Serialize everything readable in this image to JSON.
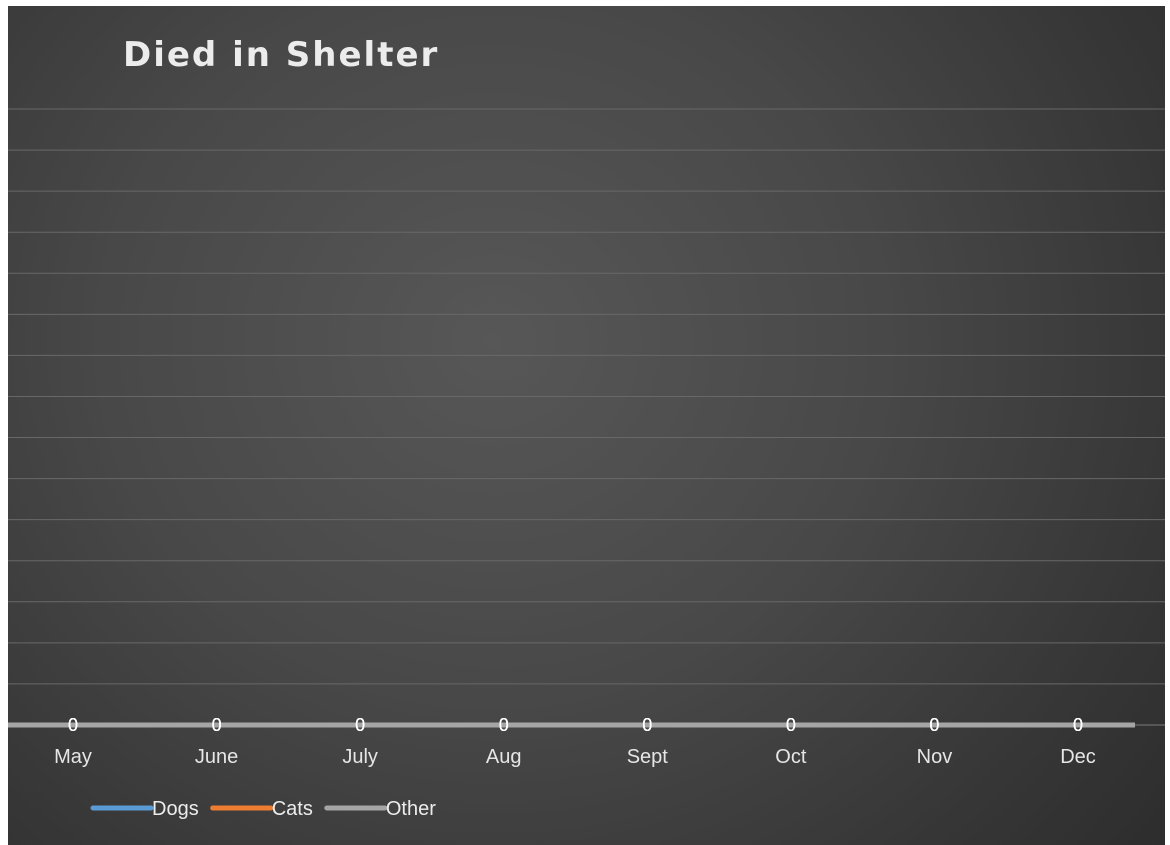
{
  "chart_data": {
    "type": "line",
    "title": "Died in Shelter",
    "xlabel": "",
    "ylabel": "",
    "categories": [
      "May",
      "June",
      "July",
      "Aug",
      "Sept",
      "Oct",
      "Nov",
      "Dec"
    ],
    "series": [
      {
        "name": "Dogs",
        "color": "#5b9bd5",
        "values": [
          0,
          0,
          0,
          0,
          0,
          0,
          0,
          0
        ]
      },
      {
        "name": "Cats",
        "color": "#ed7d31",
        "values": [
          0,
          0,
          0,
          0,
          0,
          0,
          0,
          0
        ]
      },
      {
        "name": "Other",
        "color": "#a5a5a5",
        "values": [
          0,
          0,
          0,
          0,
          0,
          0,
          0,
          0
        ]
      }
    ],
    "data_labels": "0",
    "ylim": [
      0,
      1
    ],
    "grid": true,
    "legend_position": "bottom-left",
    "background": "#474747"
  }
}
